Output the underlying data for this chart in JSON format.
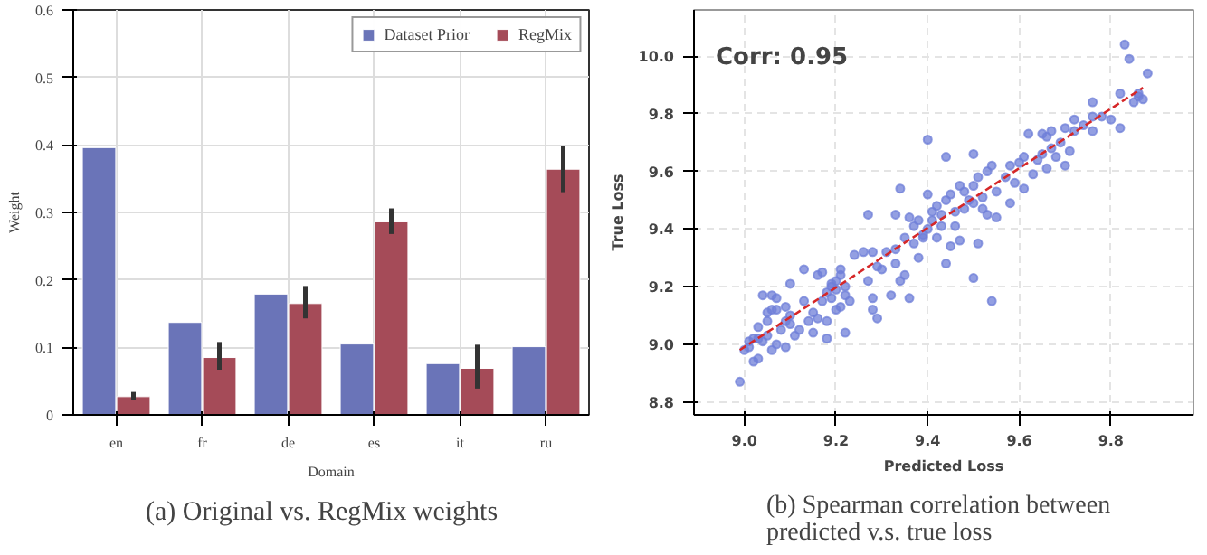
{
  "chart_data": [
    {
      "type": "bar",
      "xlabel": "Domain",
      "ylabel": "Weight",
      "categories": [
        "en",
        "fr",
        "de",
        "es",
        "it",
        "ru"
      ],
      "series": [
        {
          "name": "Dataset Prior",
          "color": "#6a74b8",
          "values": [
            0.396,
            0.137,
            0.179,
            0.105,
            0.076,
            0.101
          ]
        },
        {
          "name": "RegMix",
          "color": "#a54b58",
          "values": [
            0.027,
            0.085,
            0.165,
            0.286,
            0.069,
            0.364
          ],
          "errors": [
            [
              0.022,
              0.034
            ],
            [
              0.067,
              0.108
            ],
            [
              0.143,
              0.191
            ],
            [
              0.268,
              0.306
            ],
            [
              0.039,
              0.104
            ],
            [
              0.33,
              0.399
            ]
          ]
        }
      ],
      "ylim": [
        0,
        0.6
      ],
      "yticks": [
        0,
        {
          "value": 0.1,
          "label": "0.1"
        },
        {
          "value": 0.2,
          "label": "0.2"
        },
        {
          "value": 0.3,
          "label": "0.3"
        },
        {
          "value": 0.4,
          "label": "0.4"
        },
        {
          "value": 0.5,
          "label": "0.5"
        },
        {
          "value": 0.6,
          "label": "0.6"
        }
      ],
      "grid": true,
      "legend": "top right",
      "annotations": [
        "(a) Original vs. RegMix weights"
      ]
    },
    {
      "type": "scatter",
      "xlabel": "Predicted Loss",
      "ylabel": "True Loss",
      "series": [
        {
          "color": "#6f7fd8",
          "type": "scatter",
          "marker": "circle",
          "x": [
            8.99,
            9.0,
            9.01,
            9.01,
            9.02,
            9.02,
            9.03,
            9.03,
            9.03,
            9.04,
            9.04,
            9.05,
            9.05,
            9.05,
            9.06,
            9.06,
            9.06,
            9.07,
            9.07,
            9.07,
            9.08,
            9.09,
            9.09,
            9.09,
            9.1,
            9.1,
            9.1,
            9.11,
            9.12,
            9.13,
            9.13,
            9.14,
            9.15,
            9.15,
            9.16,
            9.16,
            9.17,
            9.17,
            9.18,
            9.18,
            9.18,
            9.19,
            9.19,
            9.19,
            9.2,
            9.2,
            9.2,
            9.21,
            9.21,
            9.21,
            9.22,
            9.22,
            9.22,
            9.23,
            9.24,
            9.26,
            9.27,
            9.27,
            9.28,
            9.28,
            9.28,
            9.29,
            9.29,
            9.3,
            9.31,
            9.32,
            9.33,
            9.33,
            9.33,
            9.34,
            9.34,
            9.35,
            9.35,
            9.36,
            9.36,
            9.37,
            9.37,
            9.38,
            9.38,
            9.39,
            9.39,
            9.4,
            9.4,
            9.4,
            9.41,
            9.41,
            9.42,
            9.42,
            9.43,
            9.43,
            9.44,
            9.44,
            9.44,
            9.45,
            9.45,
            9.46,
            9.46,
            9.47,
            9.47,
            9.48,
            9.48,
            9.49,
            9.5,
            9.5,
            9.5,
            9.5,
            9.51,
            9.51,
            9.52,
            9.52,
            9.53,
            9.53,
            9.54,
            9.54,
            9.55,
            9.55,
            9.57,
            9.58,
            9.58,
            9.59,
            9.6,
            9.61,
            9.61,
            9.62,
            9.63,
            9.64,
            9.65,
            9.65,
            9.66,
            9.66,
            9.67,
            9.67,
            9.68,
            9.69,
            9.7,
            9.7,
            9.71,
            9.72,
            9.72,
            9.74,
            9.76,
            9.76,
            9.76,
            9.78,
            9.8,
            9.82,
            9.82,
            9.83,
            9.84,
            9.85,
            9.86,
            9.86,
            9.87,
            9.88
          ],
          "values": [
            8.87,
            8.98,
            8.99,
            9.01,
            8.94,
            9.02,
            9.02,
            9.06,
            8.95,
            9.01,
            9.17,
            9.03,
            9.11,
            9.08,
            8.98,
            9.17,
            9.12,
            9.16,
            9.12,
            9.0,
            9.05,
            9.08,
            8.99,
            9.13,
            9.1,
            9.21,
            9.07,
            9.03,
            9.05,
            9.15,
            9.26,
            9.08,
            9.04,
            9.11,
            9.09,
            9.24,
            9.15,
            9.25,
            9.18,
            9.08,
            9.02,
            9.2,
            9.16,
            9.21,
            9.22,
            9.12,
            9.19,
            9.24,
            9.26,
            9.13,
            9.2,
            9.17,
            9.04,
            9.15,
            9.31,
            9.32,
            9.22,
            9.45,
            9.32,
            9.16,
            9.12,
            9.09,
            9.27,
            9.26,
            9.32,
            9.17,
            9.33,
            9.45,
            9.28,
            9.22,
            9.54,
            9.37,
            9.24,
            9.16,
            9.44,
            9.41,
            9.35,
            9.43,
            9.3,
            9.38,
            9.37,
            9.71,
            9.4,
            9.52,
            9.46,
            9.43,
            9.37,
            9.48,
            9.45,
            9.41,
            9.5,
            9.28,
            9.65,
            9.52,
            9.34,
            9.46,
            9.41,
            9.55,
            9.36,
            9.47,
            9.53,
            9.5,
            9.23,
            9.66,
            9.55,
            9.49,
            9.58,
            9.35,
            9.51,
            9.47,
            9.6,
            9.45,
            9.62,
            9.15,
            9.53,
            9.44,
            9.58,
            9.49,
            9.62,
            9.56,
            9.63,
            9.54,
            9.65,
            9.73,
            9.59,
            9.64,
            9.73,
            9.66,
            9.61,
            9.72,
            9.68,
            9.74,
            9.65,
            9.7,
            9.62,
            9.75,
            9.67,
            9.78,
            9.74,
            9.76,
            9.84,
            9.74,
            9.79,
            9.79,
            9.78,
            9.75,
            9.87,
            10.04,
            9.99,
            9.84,
            9.86,
            9.87,
            9.85,
            9.94
          ]
        },
        {
          "color": "#d62728",
          "type": "line",
          "line_style": "dashed",
          "x": [
            8.99,
            9.87
          ],
          "values": [
            8.98,
            9.89
          ]
        }
      ],
      "xlim": [
        8.89,
        9.98
      ],
      "ylim": [
        8.755,
        10.16
      ],
      "xticks": [
        {
          "value": 9.0,
          "label": "9.0"
        },
        9.2,
        9.4,
        9.6,
        9.8
      ],
      "yticks": [
        8.8,
        {
          "value": 9.0,
          "label": "9.0"
        },
        9.2,
        9.4,
        9.6,
        9.8,
        {
          "value": 10.0,
          "label": "10.0"
        }
      ],
      "grid": true,
      "annotations": [
        "Corr: 0.95",
        "(b) Spearman correlation between predicted v.s. true loss"
      ]
    }
  ]
}
